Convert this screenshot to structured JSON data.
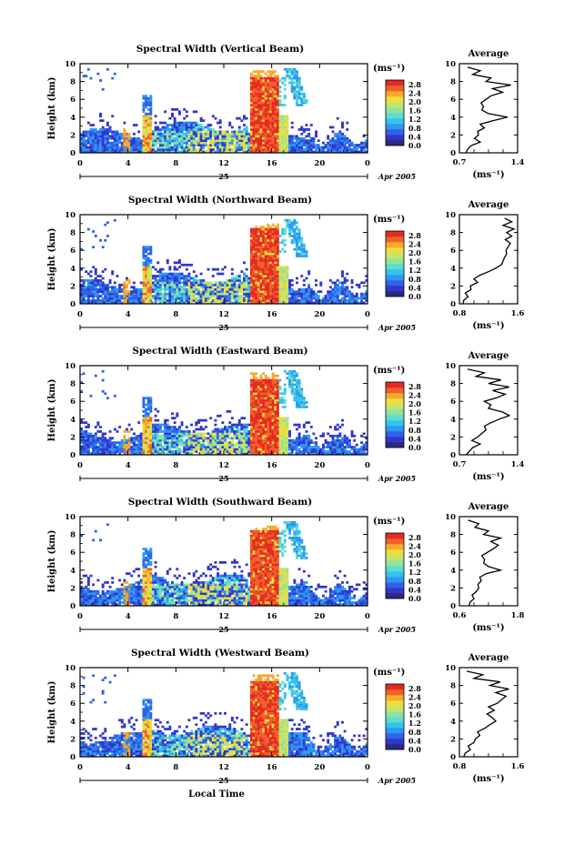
{
  "figure": {
    "x_label": "Local Time",
    "unit_label": "(ms⁻¹)",
    "avg_unit_label": "(ms⁻¹)",
    "date_day": "25",
    "date_label": "Apr 2005",
    "avg_title": "Average"
  },
  "colors": {
    "scale": [
      "#2b2a7f",
      "#3336cc",
      "#2f63e9",
      "#2f98f2",
      "#33c4ee",
      "#5fdccd",
      "#91e39d",
      "#c6e46c",
      "#efdd3d",
      "#f7a92c",
      "#f0612a",
      "#e52a24"
    ]
  },
  "chart_data": [
    {
      "type": "heatmap",
      "title": "Spectral Width (Vertical Beam)",
      "ylabel": "Height (km)",
      "xlabel": "",
      "x_ticks": [
        "0",
        "4",
        "8",
        "12",
        "16",
        "20",
        "0"
      ],
      "y_ticks": [
        "0",
        "2",
        "4",
        "6",
        "8",
        "10"
      ],
      "xlim": [
        0,
        24
      ],
      "ylim": [
        0,
        10
      ],
      "colorbar_ticks": [
        "0.0",
        "0.4",
        "0.8",
        "1.2",
        "1.6",
        "2.0",
        "2.4",
        "2.8"
      ],
      "colorbar_range": [
        0,
        3.0
      ],
      "average": {
        "title": "Average",
        "xlabel": "(ms⁻¹)",
        "x_ticks": [
          "0.7",
          "1.4"
        ],
        "xlim": [
          0.7,
          1.4
        ],
        "y_ticks": [
          "0",
          "2",
          "4",
          "6",
          "8",
          "10"
        ],
        "height": [
          0,
          0.4,
          0.8,
          1.2,
          1.6,
          2,
          2.4,
          2.8,
          3.2,
          3.6,
          4,
          4.4,
          4.8,
          5.2,
          5.6,
          6,
          6.4,
          6.8,
          7.2,
          7.6,
          8,
          8.4,
          8.8,
          9.2,
          9.6
        ],
        "value": [
          0.78,
          0.8,
          0.84,
          0.95,
          0.88,
          0.93,
          0.92,
          1.0,
          0.95,
          1.1,
          1.28,
          1.05,
          0.97,
          0.99,
          0.96,
          1.02,
          1.08,
          1.22,
          1.1,
          1.32,
          1.02,
          1.08,
          0.86,
          0.95,
          0.8
        ]
      }
    },
    {
      "type": "heatmap",
      "title": "Spectral Width (Northward Beam)",
      "ylabel": "Height (km)",
      "xlabel": "",
      "x_ticks": [
        "0",
        "4",
        "8",
        "12",
        "16",
        "20",
        "0"
      ],
      "y_ticks": [
        "0",
        "2",
        "4",
        "6",
        "8",
        "10"
      ],
      "xlim": [
        0,
        24
      ],
      "ylim": [
        0,
        10
      ],
      "colorbar_ticks": [
        "0.0",
        "0.4",
        "0.8",
        "1.2",
        "1.6",
        "2.0",
        "2.4",
        "2.8"
      ],
      "colorbar_range": [
        0,
        3.0
      ],
      "average": {
        "title": "Average",
        "xlabel": "(ms⁻¹)",
        "x_ticks": [
          "0.8",
          "1.6"
        ],
        "xlim": [
          0.8,
          1.6
        ],
        "y_ticks": [
          "0",
          "2",
          "4",
          "6",
          "8",
          "10"
        ],
        "height": [
          0,
          0.4,
          0.8,
          1.2,
          1.6,
          2,
          2.4,
          2.8,
          3.2,
          3.6,
          4,
          4.4,
          4.8,
          5.2,
          5.6,
          6,
          6.4,
          6.8,
          7.2,
          7.6,
          8,
          8.4,
          8.8,
          9.2,
          9.6
        ],
        "value": [
          0.85,
          0.86,
          0.92,
          0.88,
          0.96,
          0.95,
          1.05,
          1.0,
          1.08,
          1.2,
          1.3,
          1.38,
          1.4,
          1.42,
          1.45,
          1.44,
          1.47,
          1.5,
          1.43,
          1.52,
          1.45,
          1.55,
          1.4,
          1.52,
          1.42
        ]
      }
    },
    {
      "type": "heatmap",
      "title": "Spectral Width (Eastward Beam)",
      "ylabel": "Height (km)",
      "xlabel": "",
      "x_ticks": [
        "0",
        "4",
        "8",
        "12",
        "16",
        "20",
        "0"
      ],
      "y_ticks": [
        "0",
        "2",
        "4",
        "6",
        "8",
        "10"
      ],
      "xlim": [
        0,
        24
      ],
      "ylim": [
        0,
        10
      ],
      "colorbar_ticks": [
        "0.0",
        "0.4",
        "0.8",
        "1.2",
        "1.6",
        "2.0",
        "2.4",
        "2.8"
      ],
      "colorbar_range": [
        0,
        3.0
      ],
      "average": {
        "title": "Average",
        "xlabel": "(ms⁻¹)",
        "x_ticks": [
          "0.7",
          "1.4"
        ],
        "xlim": [
          0.7,
          1.4
        ],
        "y_ticks": [
          "0",
          "2",
          "4",
          "6",
          "8",
          "10"
        ],
        "height": [
          0,
          0.4,
          0.8,
          1.2,
          1.6,
          2,
          2.4,
          2.8,
          3.2,
          3.6,
          4,
          4.4,
          4.8,
          5.2,
          5.6,
          6,
          6.4,
          6.8,
          7.2,
          7.6,
          8,
          8.4,
          8.8,
          9.2,
          9.6
        ],
        "value": [
          0.78,
          0.82,
          0.86,
          0.95,
          0.85,
          0.92,
          0.97,
          1.02,
          1.0,
          1.08,
          1.18,
          1.3,
          1.22,
          1.05,
          1.08,
          1.0,
          1.15,
          1.25,
          1.1,
          1.3,
          1.05,
          1.2,
          0.9,
          1.0,
          0.8
        ]
      }
    },
    {
      "type": "heatmap",
      "title": "Spectral Width (Southward Beam)",
      "ylabel": "Height (km)",
      "xlabel": "",
      "x_ticks": [
        "0",
        "4",
        "8",
        "12",
        "16",
        "20",
        "0"
      ],
      "y_ticks": [
        "0",
        "2",
        "4",
        "6",
        "8",
        "10"
      ],
      "xlim": [
        0,
        24
      ],
      "ylim": [
        0,
        10
      ],
      "colorbar_ticks": [
        "0.0",
        "0.4",
        "0.8",
        "1.2",
        "1.6",
        "2.0",
        "2.4",
        "2.8"
      ],
      "colorbar_range": [
        0,
        3.0
      ],
      "average": {
        "title": "Average",
        "xlabel": "(ms⁻¹)",
        "x_ticks": [
          "0.6",
          "1.8"
        ],
        "xlim": [
          0.6,
          1.8
        ],
        "y_ticks": [
          "0",
          "2",
          "4",
          "6",
          "8",
          "10"
        ],
        "height": [
          0,
          0.4,
          0.8,
          1.2,
          1.6,
          2,
          2.4,
          2.8,
          3.2,
          3.6,
          4,
          4.4,
          4.8,
          5.2,
          5.6,
          6,
          6.4,
          6.8,
          7.2,
          7.6,
          8,
          8.4,
          8.8,
          9.2,
          9.6
        ],
        "value": [
          0.8,
          0.82,
          0.9,
          0.86,
          0.95,
          1.0,
          0.98,
          1.05,
          1.02,
          1.15,
          1.45,
          1.2,
          1.1,
          1.12,
          1.06,
          1.18,
          1.3,
          1.4,
          1.25,
          1.45,
          1.1,
          1.2,
          0.92,
          1.0,
          0.78
        ]
      }
    },
    {
      "type": "heatmap",
      "title": "Spectral Width (Westward Beam)",
      "ylabel": "Height (km)",
      "xlabel": "Local Time",
      "x_ticks": [
        "0",
        "4",
        "8",
        "12",
        "16",
        "20",
        "0"
      ],
      "y_ticks": [
        "0",
        "2",
        "4",
        "6",
        "8",
        "10"
      ],
      "xlim": [
        0,
        24
      ],
      "ylim": [
        0,
        10
      ],
      "colorbar_ticks": [
        "0.0",
        "0.4",
        "0.8",
        "1.2",
        "1.6",
        "2.0",
        "2.4",
        "2.8"
      ],
      "colorbar_range": [
        0,
        3.0
      ],
      "average": {
        "title": "Average",
        "xlabel": "(ms⁻¹)",
        "x_ticks": [
          "0.8",
          "1.6"
        ],
        "xlim": [
          0.8,
          1.6
        ],
        "y_ticks": [
          "0",
          "2",
          "4",
          "6",
          "8",
          "10"
        ],
        "height": [
          0,
          0.4,
          0.8,
          1.2,
          1.6,
          2,
          2.4,
          2.8,
          3.2,
          3.6,
          4,
          4.4,
          4.8,
          5.2,
          5.6,
          6,
          6.4,
          6.8,
          7.2,
          7.6,
          8,
          8.4,
          8.8,
          9.2,
          9.6
        ],
        "value": [
          0.86,
          0.88,
          0.95,
          0.92,
          1.0,
          1.02,
          1.08,
          1.05,
          1.15,
          1.22,
          1.3,
          1.25,
          1.18,
          1.28,
          1.2,
          1.32,
          1.38,
          1.44,
          1.3,
          1.48,
          1.22,
          1.36,
          1.0,
          1.12,
          0.9
        ]
      }
    }
  ]
}
